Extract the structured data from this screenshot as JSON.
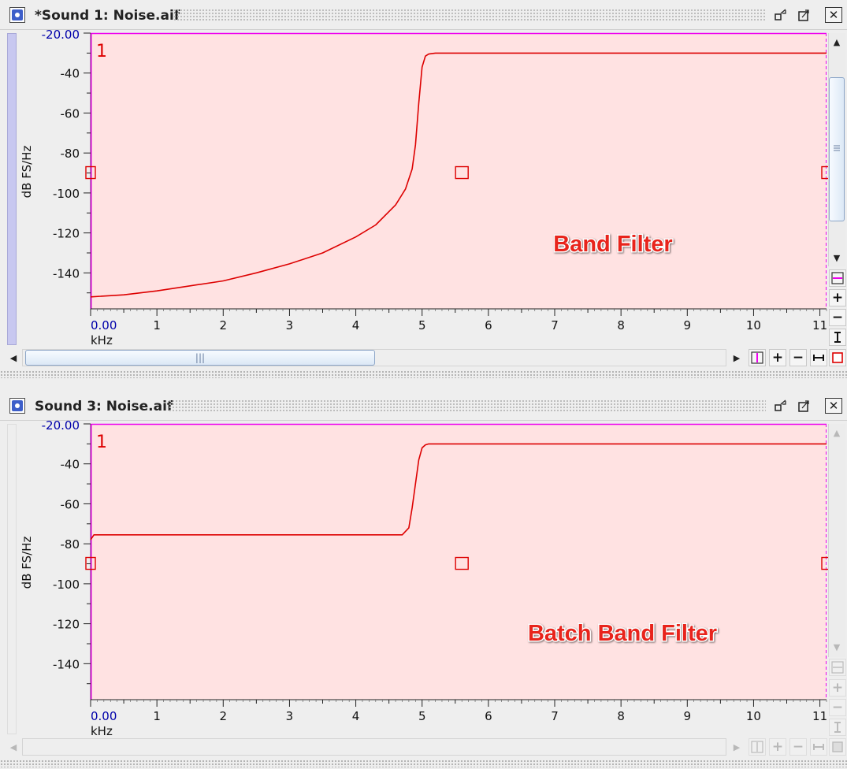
{
  "windows": [
    {
      "title": "*Sound 1: Noise.aif",
      "y_axis": {
        "label": "dB FS/Hz",
        "ticks": [
          "-20.00",
          "-40",
          "-60",
          "-80",
          "-100",
          "-120",
          "-140"
        ]
      },
      "x_axis": {
        "label": "kHz",
        "ticks": [
          "0.00",
          "1",
          "2",
          "3",
          "4",
          "5",
          "6",
          "7",
          "8",
          "9",
          "10",
          "11"
        ]
      },
      "channel_label": "1",
      "annotation": "Band Filter",
      "colors": {
        "plot_bg": "#ffe2e2",
        "curve": "#dd0000",
        "border": "#ee00ee",
        "annotation": "#e8241c"
      },
      "chart_data": {
        "type": "line",
        "x_unit": "kHz",
        "y_unit": "dB FS/Hz",
        "xlim": [
          0,
          11.1
        ],
        "ylim": [
          -158,
          -20
        ],
        "x": [
          0,
          0.5,
          1,
          1.5,
          2,
          2.5,
          3,
          3.5,
          4,
          4.3,
          4.6,
          4.75,
          4.85,
          4.9,
          4.95,
          5.0,
          5.05,
          5.1,
          5.2,
          6,
          7,
          8,
          9,
          10,
          11.1
        ],
        "y": [
          -152,
          -151,
          -149,
          -146.5,
          -144,
          -140,
          -135.5,
          -130,
          -122,
          -116,
          -106,
          -98,
          -88,
          -76,
          -55,
          -37,
          -31.5,
          -30.5,
          -30,
          -30,
          -30,
          -30,
          -30,
          -30,
          -30
        ]
      }
    },
    {
      "title": "Sound 3: Noise.aif",
      "y_axis": {
        "label": "dB FS/Hz",
        "ticks": [
          "-20.00",
          "-40",
          "-60",
          "-80",
          "-100",
          "-120",
          "-140"
        ]
      },
      "x_axis": {
        "label": "kHz",
        "ticks": [
          "0.00",
          "1",
          "2",
          "3",
          "4",
          "5",
          "6",
          "7",
          "8",
          "9",
          "10",
          "11"
        ]
      },
      "channel_label": "1",
      "annotation": "Batch Band Filter",
      "colors": {
        "plot_bg": "#ffe2e2",
        "curve": "#dd0000",
        "border": "#ee00ee",
        "annotation": "#e8241c"
      },
      "chart_data": {
        "type": "line",
        "x_unit": "kHz",
        "y_unit": "dB FS/Hz",
        "xlim": [
          0,
          11.1
        ],
        "ylim": [
          -158,
          -20
        ],
        "x": [
          0,
          0.05,
          1,
          2,
          3,
          4,
          4.7,
          4.8,
          4.85,
          4.9,
          4.95,
          5.0,
          5.05,
          5.1,
          5.2,
          6,
          7,
          8,
          9,
          10,
          11.1
        ],
        "y": [
          -78,
          -75.5,
          -75.5,
          -75.5,
          -75.5,
          -75.5,
          -75.5,
          -72,
          -62,
          -50,
          -38,
          -32,
          -30.5,
          -30,
          -30,
          -30,
          -30,
          -30,
          -30,
          -30,
          -30
        ]
      }
    }
  ]
}
